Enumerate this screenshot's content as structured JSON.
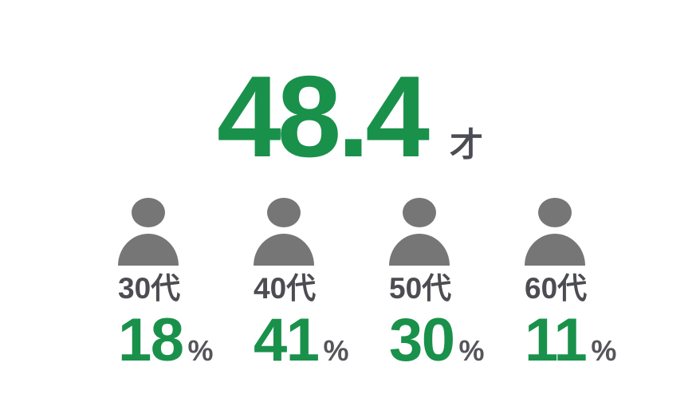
{
  "headline": {
    "value": "48.4",
    "unit": "才"
  },
  "columns": [
    {
      "label": "30代",
      "value": "18",
      "unit": "%"
    },
    {
      "label": "40代",
      "value": "41",
      "unit": "%"
    },
    {
      "label": "50代",
      "value": "30",
      "unit": "%"
    },
    {
      "label": "60代",
      "value": "11",
      "unit": "%"
    }
  ],
  "icons": {
    "person": "person-silhouette-icon"
  },
  "colors": {
    "accent_green": "#19914b",
    "icon_gray": "#767676",
    "text_dark_gray": "#4c4c53",
    "percent_sign_gray": "#55555a",
    "background": "#ffffff"
  },
  "chart_data": {
    "type": "bar",
    "style": "pictogram-percentages",
    "title": "48.4才",
    "headline_value": 48.4,
    "headline_unit": "才",
    "categories": [
      "30代",
      "40代",
      "50代",
      "60代"
    ],
    "values": [
      18,
      41,
      30,
      11
    ],
    "value_unit": "%",
    "legend": "none",
    "axes": "none",
    "grid": false
  }
}
